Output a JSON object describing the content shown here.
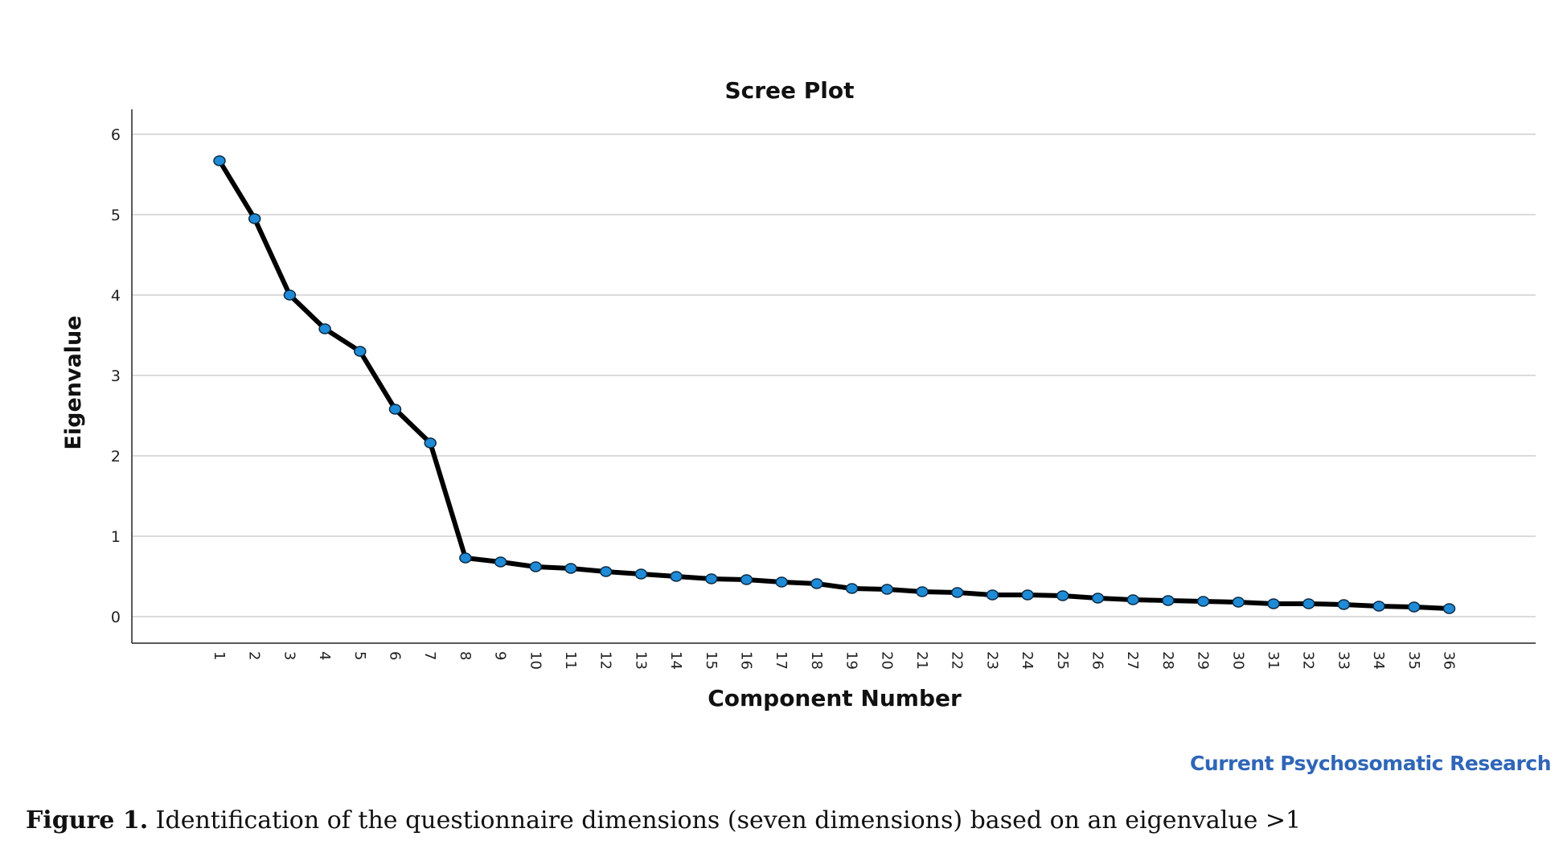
{
  "chart_data": {
    "type": "line",
    "title": "Scree Plot",
    "xlabel": "Component Number",
    "ylabel": "Eigenvalue",
    "x": [
      1,
      2,
      3,
      4,
      5,
      6,
      7,
      8,
      9,
      10,
      11,
      12,
      13,
      14,
      15,
      16,
      17,
      18,
      19,
      20,
      21,
      22,
      23,
      24,
      25,
      26,
      27,
      28,
      29,
      30,
      31,
      32,
      33,
      34,
      35,
      36
    ],
    "values": [
      5.67,
      4.95,
      4.0,
      3.58,
      3.3,
      2.58,
      2.16,
      0.73,
      0.68,
      0.62,
      0.6,
      0.56,
      0.53,
      0.5,
      0.47,
      0.46,
      0.43,
      0.41,
      0.35,
      0.34,
      0.31,
      0.3,
      0.27,
      0.27,
      0.26,
      0.23,
      0.21,
      0.2,
      0.19,
      0.18,
      0.16,
      0.16,
      0.15,
      0.13,
      0.12,
      0.1
    ],
    "ylim": [
      0,
      6
    ],
    "yticks": [
      0,
      1,
      2,
      3,
      4,
      5,
      6
    ],
    "grid": true,
    "line_color": "#000000",
    "marker_color": "#1f8bd6"
  },
  "journal_label": "Current Psychosomatic Research",
  "caption": {
    "label": "Figure 1.",
    "text": " Identification of the questionnaire dimensions (seven dimensions) based on an eigenvalue >1"
  }
}
